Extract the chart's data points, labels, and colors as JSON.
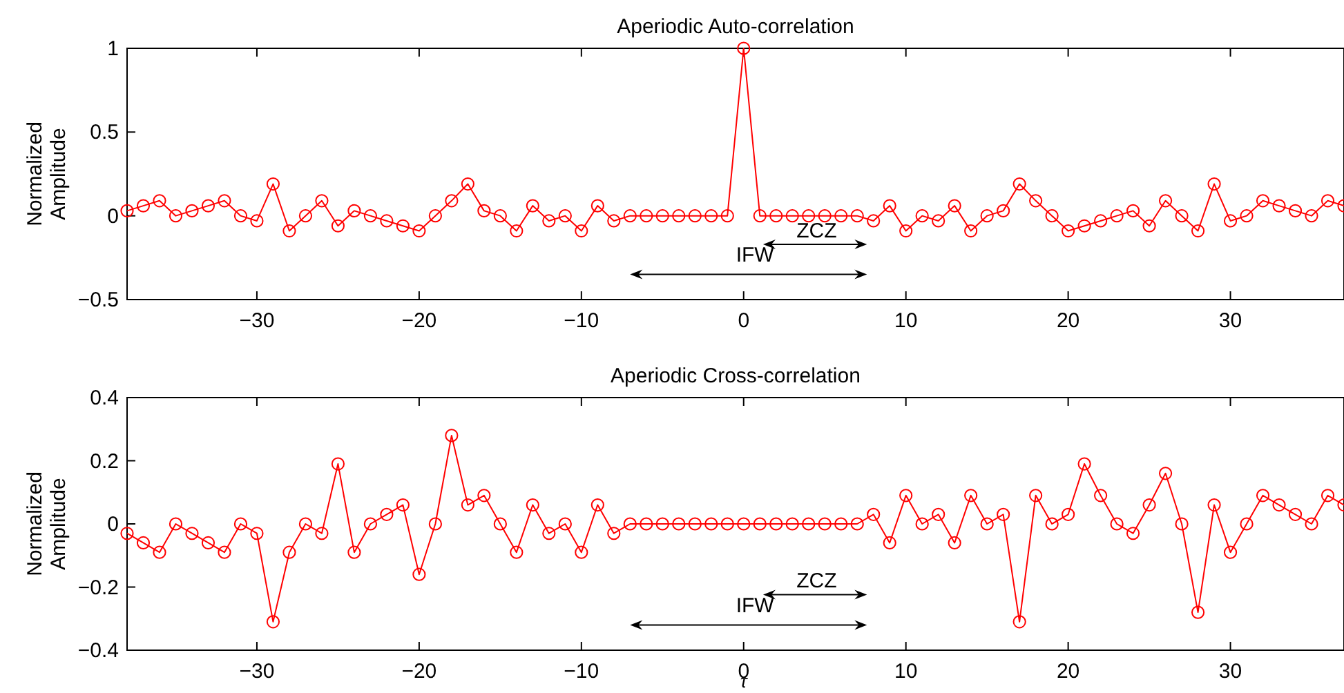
{
  "chart_data": [
    {
      "type": "line",
      "title": "Aperiodic Auto-correlation",
      "ylabel": "Normalized\nAmplitude",
      "marker": "circle",
      "line_style": "solid",
      "x": [
        -38,
        -37,
        -36,
        -35,
        -34,
        -33,
        -32,
        -31,
        -30,
        -29,
        -28,
        -27,
        -26,
        -25,
        -24,
        -23,
        -22,
        -21,
        -20,
        -19,
        -18,
        -17,
        -16,
        -15,
        -14,
        -13,
        -12,
        -11,
        -10,
        -9,
        -8,
        -7,
        -6,
        -5,
        -4,
        -3,
        -2,
        -1,
        0,
        1,
        2,
        3,
        4,
        5,
        6,
        7,
        8,
        9,
        10,
        11,
        12,
        13,
        14,
        15,
        16,
        17,
        18,
        19,
        20,
        21,
        22,
        23,
        24,
        25,
        26,
        27,
        28,
        29,
        30,
        31,
        32,
        33,
        34,
        35,
        36,
        37
      ],
      "series": [
        {
          "color": "#ff0000",
          "values": [
            0.03,
            0.06,
            0.09,
            0,
            0.03,
            0.06,
            0.09,
            0,
            -0.03,
            0.19,
            -0.09,
            0,
            0.09,
            -0.06,
            0.03,
            0,
            -0.03,
            -0.06,
            -0.09,
            0,
            0.09,
            0.19,
            0.03,
            0,
            -0.09,
            0.06,
            -0.03,
            0,
            -0.09,
            0.06,
            -0.03,
            0,
            0,
            0,
            0,
            0,
            0,
            0,
            1,
            0,
            0,
            0,
            0,
            0,
            0,
            0,
            -0.03,
            0.06,
            -0.09,
            0,
            -0.03,
            0.06,
            -0.09,
            0,
            0.03,
            0.19,
            0.09,
            0,
            -0.09,
            -0.06,
            -0.03,
            0,
            0.03,
            -0.06,
            0.09,
            0,
            -0.09,
            0.19,
            -0.03,
            0,
            0.09,
            0.06,
            0.03,
            0,
            0.09,
            0.06
          ]
        }
      ],
      "xlim": [
        -38,
        37
      ],
      "xticks": [
        {
          "value": -30,
          "label": "−30"
        },
        {
          "value": -20,
          "label": "−20"
        },
        {
          "value": -10,
          "label": "−10"
        },
        0,
        10,
        20,
        30
      ],
      "ylim": [
        -0.5,
        1
      ],
      "yticks": [
        {
          "value": -0.5,
          "label": "−0.5"
        },
        0,
        0.5,
        1
      ],
      "annotations": [
        "ZCZ",
        "IFW"
      ]
    },
    {
      "type": "line",
      "title": "Aperiodic Cross-correlation",
      "xlabel": "τ",
      "ylabel": "Normalized\nAmplitude",
      "marker": "circle",
      "line_style": "solid",
      "x": [
        -38,
        -37,
        -36,
        -35,
        -34,
        -33,
        -32,
        -31,
        -30,
        -29,
        -28,
        -27,
        -26,
        -25,
        -24,
        -23,
        -22,
        -21,
        -20,
        -19,
        -18,
        -17,
        -16,
        -15,
        -14,
        -13,
        -12,
        -11,
        -10,
        -9,
        -8,
        -7,
        -6,
        -5,
        -4,
        -3,
        -2,
        -1,
        0,
        1,
        2,
        3,
        4,
        5,
        6,
        7,
        8,
        9,
        10,
        11,
        12,
        13,
        14,
        15,
        16,
        17,
        18,
        19,
        20,
        21,
        22,
        23,
        24,
        25,
        26,
        27,
        28,
        29,
        30,
        31,
        32,
        33,
        34,
        35,
        36,
        37
      ],
      "series": [
        {
          "color": "#ff0000",
          "values": [
            -0.03,
            -0.06,
            -0.09,
            0,
            -0.03,
            -0.06,
            -0.09,
            0,
            -0.03,
            -0.31,
            -0.09,
            0,
            -0.03,
            0.19,
            -0.09,
            0,
            0.03,
            0.06,
            -0.16,
            0,
            0.28,
            0.06,
            0.09,
            0,
            -0.09,
            0.06,
            -0.03,
            0,
            -0.09,
            0.06,
            -0.03,
            0,
            0,
            0,
            0,
            0,
            0,
            0,
            0,
            0,
            0,
            0,
            0,
            0,
            0,
            0,
            0.03,
            -0.06,
            0.09,
            0,
            0.03,
            -0.06,
            0.09,
            0,
            0.03,
            -0.31,
            0.09,
            0,
            0.03,
            0.19,
            0.09,
            0,
            -0.03,
            0.06,
            0.16,
            0,
            -0.28,
            0.06,
            -0.09,
            0,
            0.09,
            0.06,
            0.03,
            0,
            0.09,
            0.06
          ]
        }
      ],
      "xlim": [
        -38,
        37
      ],
      "xticks": [
        {
          "value": -30,
          "label": "−30"
        },
        {
          "value": -20,
          "label": "−20"
        },
        {
          "value": -10,
          "label": "−10"
        },
        0,
        10,
        20,
        30
      ],
      "ylim": [
        -0.4,
        0.4
      ],
      "yticks": [
        {
          "value": -0.4,
          "label": "−0.4"
        },
        {
          "value": -0.2,
          "label": "−0.2"
        },
        0,
        0.2,
        0.4
      ],
      "annotations": [
        "ZCZ",
        "IFW"
      ]
    }
  ]
}
